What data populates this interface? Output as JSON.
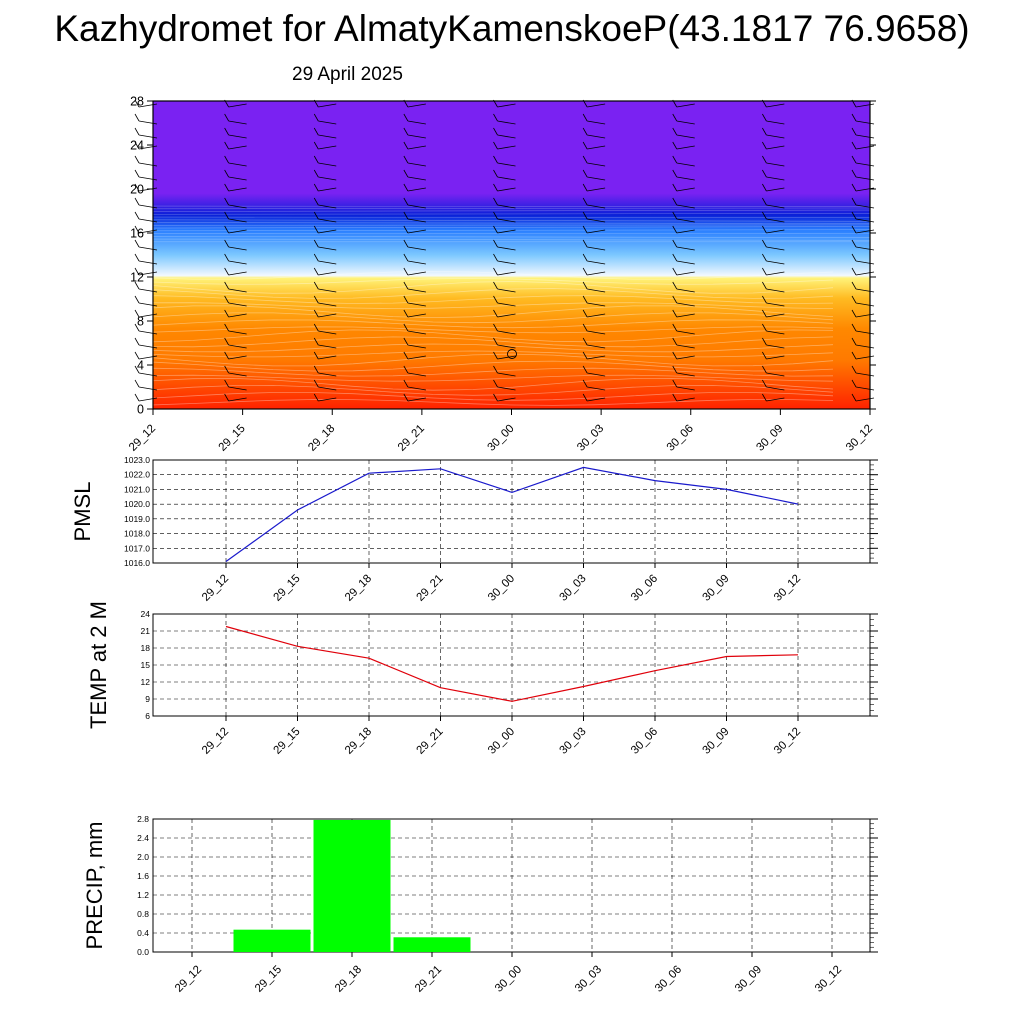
{
  "title": "Kazhydromet for AlmatyKamenskoeP(43.1817 76.9658)",
  "subtitle": "29 April 2025",
  "chart_data": [
    {
      "type": "heatmap",
      "name": "cross-section",
      "x_ticks": [
        "29_12",
        "29_15",
        "29_18",
        "29_21",
        "30_00",
        "30_03",
        "30_06",
        "30_09",
        "30_12"
      ],
      "ylim": [
        0,
        28
      ],
      "y_ticks": [
        0,
        4,
        8,
        12,
        16,
        20,
        24,
        28
      ],
      "colors": [
        "#ff2200",
        "#ff8000",
        "#ffe833",
        "#e8f4ff",
        "#44aaff",
        "#1030e0",
        "#7a22f2"
      ]
    },
    {
      "type": "line",
      "name": "pmsl",
      "ylabel": "PMSL",
      "categories": [
        "29_12",
        "29_15",
        "29_18",
        "29_21",
        "30_00",
        "30_03",
        "30_06",
        "30_09",
        "30_12"
      ],
      "values": [
        1016.1,
        1019.6,
        1022.1,
        1022.4,
        1020.8,
        1022.5,
        1021.6,
        1021.0,
        1020.0
      ],
      "ylim": [
        1016.0,
        1023.0
      ],
      "y_ticks": [
        "1016.0",
        "1017.0",
        "1018.0",
        "1019.0",
        "1020.0",
        "1021.0",
        "1022.0",
        "1023.0"
      ],
      "color": "#1a1acc"
    },
    {
      "type": "line",
      "name": "temp",
      "ylabel": "TEMP at 2 M",
      "categories": [
        "29_12",
        "29_15",
        "29_18",
        "29_21",
        "30_00",
        "30_03",
        "30_06",
        "30_09",
        "30_12"
      ],
      "values": [
        21.8,
        18.3,
        16.2,
        11.0,
        8.6,
        11.2,
        14.0,
        16.5,
        16.8
      ],
      "ylim": [
        6,
        24
      ],
      "y_ticks": [
        "6",
        "9",
        "12",
        "15",
        "18",
        "21",
        "24"
      ],
      "color": "#e0000a"
    },
    {
      "type": "bar",
      "name": "precip",
      "ylabel": "PRECIP, mm",
      "categories": [
        "29_12",
        "29_15",
        "29_18",
        "29_21",
        "30_00",
        "30_03",
        "30_06",
        "30_09",
        "30_12"
      ],
      "values": [
        0,
        0.47,
        2.78,
        0.31,
        0,
        0,
        0,
        0,
        0
      ],
      "ylim": [
        0,
        2.8
      ],
      "y_ticks": [
        "0.0",
        "0.4",
        "0.8",
        "1.2",
        "1.6",
        "2.0",
        "2.4",
        "2.8"
      ],
      "color": "#00ff00"
    }
  ]
}
